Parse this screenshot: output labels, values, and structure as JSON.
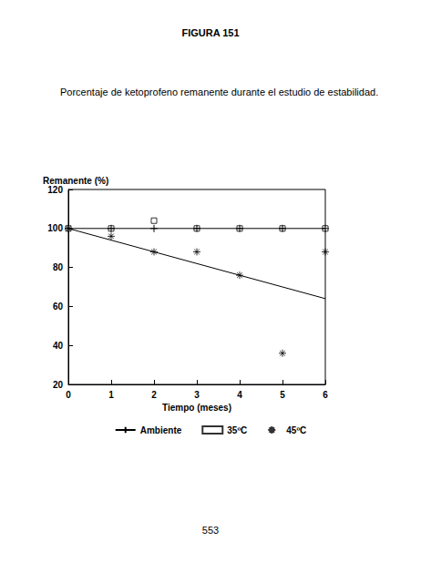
{
  "header": "FIGURA 151",
  "caption": "Porcentaje de ketoprofeno remanente durante el estudio de estabilidad.",
  "page_number": "553",
  "chart_data": {
    "type": "line",
    "y_label": "Remanente (%)",
    "x_label": "Tiempo (meses)",
    "x": [
      0,
      1,
      2,
      3,
      4,
      5,
      6
    ],
    "series": [
      {
        "name": "Ambiente",
        "type": "line",
        "marker": "plus",
        "color": "#000000",
        "values": [
          100,
          100,
          100,
          100,
          100,
          100,
          100
        ]
      },
      {
        "name": "35ºC",
        "type": "scatter",
        "marker": "square",
        "color": "#000000",
        "values": [
          100,
          100,
          104,
          100,
          100,
          100,
          100
        ]
      },
      {
        "name": "45ºC",
        "type": "scatter",
        "marker": "asterisk",
        "color": "#000000",
        "values": [
          100,
          96,
          88,
          88,
          76,
          36,
          88
        ],
        "trend_x": [
          0,
          6
        ],
        "trend_values": [
          100,
          64
        ]
      }
    ],
    "xlim": [
      0,
      6
    ],
    "xticks": [
      0,
      1,
      2,
      3,
      4,
      5,
      6
    ],
    "ylim": [
      20,
      120
    ],
    "yticks": [
      20,
      40,
      60,
      80,
      100,
      120
    ],
    "grid": false,
    "legend": "bottom"
  }
}
